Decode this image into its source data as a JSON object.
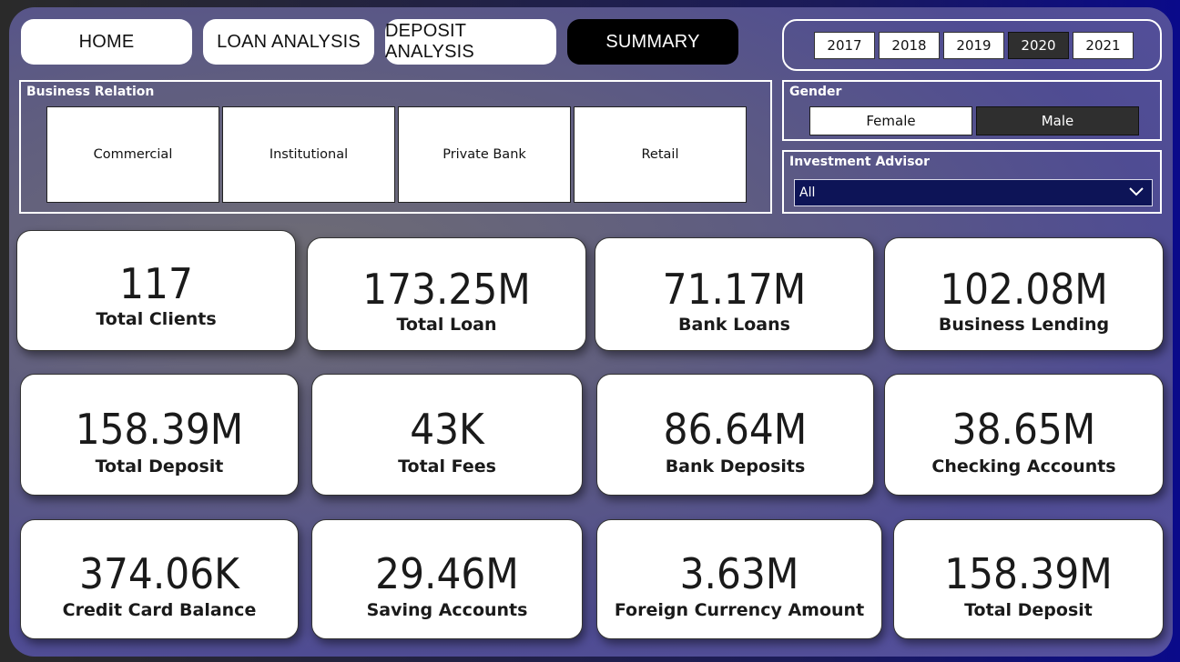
{
  "nav": {
    "home": "HOME",
    "loan_analysis": "LOAN ANALYSIS",
    "deposit_analysis": "DEPOSIT ANALYSIS",
    "summary": "SUMMARY",
    "active": "summary"
  },
  "years": {
    "items": [
      "2017",
      "2018",
      "2019",
      "2020",
      "2021"
    ],
    "selected": "2020"
  },
  "business_relation": {
    "title": "Business Relation",
    "items": [
      "Commercial",
      "Institutional",
      "Private Bank",
      "Retail"
    ]
  },
  "gender": {
    "title": "Gender",
    "items": [
      "Female",
      "Male"
    ],
    "selected": "Male"
  },
  "investment_advisor": {
    "title": "Investment Advisor",
    "value": "All",
    "icon": "chevron-down-icon"
  },
  "kpis": [
    {
      "value": "117",
      "label": "Total Clients"
    },
    {
      "value": "173.25M",
      "label": "Total Loan"
    },
    {
      "value": "71.17M",
      "label": "Bank Loans"
    },
    {
      "value": "102.08M",
      "label": "Business Lending"
    },
    {
      "value": "158.39M",
      "label": "Total Deposit"
    },
    {
      "value": "43K",
      "label": "Total Fees"
    },
    {
      "value": "86.64M",
      "label": "Bank Deposits"
    },
    {
      "value": "38.65M",
      "label": "Checking Accounts"
    },
    {
      "value": "374.06K",
      "label": "Credit Card Balance"
    },
    {
      "value": "29.46M",
      "label": "Saving Accounts"
    },
    {
      "value": "3.63M",
      "label": "Foreign Currency Amount"
    },
    {
      "value": "158.39M",
      "label": "Total Deposit"
    }
  ],
  "colors": {
    "active_button": "#000000",
    "selected_toggle": "#2f2f2f",
    "dropdown_bg": "#0d1457"
  }
}
